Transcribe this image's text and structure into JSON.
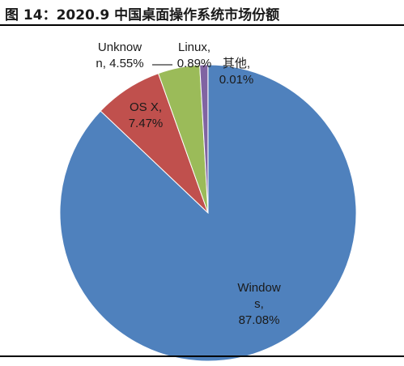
{
  "title": "图 14：2020.9 中国桌面操作系统市场份额",
  "chart_data": {
    "type": "pie",
    "slices": [
      {
        "name": "Windows",
        "value": 87.08,
        "color": "#4f81bd",
        "label_lines": [
          "Window",
          "s,",
          "87.08%"
        ]
      },
      {
        "name": "OS X",
        "value": 7.47,
        "color": "#c0504d",
        "label_lines": [
          "OS X,",
          "7.47%"
        ]
      },
      {
        "name": "Unknown",
        "value": 4.55,
        "color": "#9bbb59",
        "label_lines": [
          "Unknow",
          "n, 4.55%"
        ]
      },
      {
        "name": "Linux",
        "value": 0.89,
        "color": "#8064a2",
        "label_lines": [
          "Linux,",
          "0.89%"
        ]
      },
      {
        "name": "其他",
        "value": 0.01,
        "color": "#4bacc6",
        "label_lines": [
          "其他,",
          "0.01%"
        ]
      }
    ]
  }
}
